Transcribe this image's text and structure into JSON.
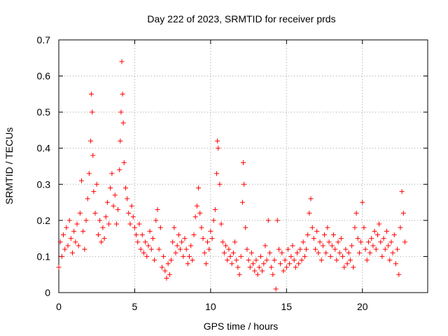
{
  "chart_data": {
    "type": "scatter",
    "title": "Day 222 of 2023, SRMTID for receiver prds",
    "xlabel": "GPS time / hours",
    "ylabel": "SRMTID / TECUs",
    "xlim": [
      0,
      24.3
    ],
    "ylim": [
      0,
      0.7
    ],
    "xticks": [
      0,
      5,
      10,
      15,
      20
    ],
    "xtick_labels": [
      "0",
      "5",
      "10",
      "15",
      "20"
    ],
    "yticks": [
      0,
      0.1,
      0.2,
      0.3,
      0.4,
      0.5,
      0.6,
      0.7
    ],
    "ytick_labels": [
      "0",
      "0.1",
      "0.2",
      "0.3",
      "0.4",
      "0.5",
      "0.6",
      "0.7"
    ],
    "grid": true,
    "marker": "+",
    "color": "#ff0000",
    "series": [
      {
        "name": "SRMTID",
        "points": [
          [
            0.0,
            0.07
          ],
          [
            0.1,
            0.14
          ],
          [
            0.2,
            0.1
          ],
          [
            0.3,
            0.16
          ],
          [
            0.4,
            0.12
          ],
          [
            0.5,
            0.18
          ],
          [
            0.6,
            0.13
          ],
          [
            0.7,
            0.2
          ],
          [
            0.8,
            0.15
          ],
          [
            0.9,
            0.11
          ],
          [
            1.0,
            0.17
          ],
          [
            1.1,
            0.14
          ],
          [
            1.2,
            0.19
          ],
          [
            1.3,
            0.13
          ],
          [
            1.4,
            0.22
          ],
          [
            1.5,
            0.31
          ],
          [
            1.6,
            0.17
          ],
          [
            1.7,
            0.12
          ],
          [
            1.8,
            0.2
          ],
          [
            1.9,
            0.26
          ],
          [
            2.0,
            0.33
          ],
          [
            2.1,
            0.42
          ],
          [
            2.15,
            0.55
          ],
          [
            2.2,
            0.5
          ],
          [
            2.25,
            0.38
          ],
          [
            2.3,
            0.28
          ],
          [
            2.4,
            0.22
          ],
          [
            2.5,
            0.3
          ],
          [
            2.6,
            0.16
          ],
          [
            2.7,
            0.2
          ],
          [
            2.8,
            0.14
          ],
          [
            2.9,
            0.18
          ],
          [
            3.0,
            0.15
          ],
          [
            3.1,
            0.21
          ],
          [
            3.2,
            0.25
          ],
          [
            3.3,
            0.19
          ],
          [
            3.4,
            0.29
          ],
          [
            3.5,
            0.33
          ],
          [
            3.6,
            0.24
          ],
          [
            3.7,
            0.27
          ],
          [
            3.8,
            0.19
          ],
          [
            3.9,
            0.23
          ],
          [
            4.0,
            0.34
          ],
          [
            4.05,
            0.42
          ],
          [
            4.1,
            0.5
          ],
          [
            4.15,
            0.64
          ],
          [
            4.2,
            0.55
          ],
          [
            4.25,
            0.47
          ],
          [
            4.3,
            0.36
          ],
          [
            4.4,
            0.29
          ],
          [
            4.5,
            0.26
          ],
          [
            4.6,
            0.22
          ],
          [
            4.7,
            0.19
          ],
          [
            4.8,
            0.24
          ],
          [
            4.9,
            0.21
          ],
          [
            5.0,
            0.18
          ],
          [
            5.1,
            0.16
          ],
          [
            5.2,
            0.14
          ],
          [
            5.3,
            0.19
          ],
          [
            5.4,
            0.12
          ],
          [
            5.5,
            0.16
          ],
          [
            5.6,
            0.11
          ],
          [
            5.7,
            0.14
          ],
          [
            5.8,
            0.1
          ],
          [
            5.9,
            0.13
          ],
          [
            6.0,
            0.17
          ],
          [
            6.1,
            0.12
          ],
          [
            6.2,
            0.15
          ],
          [
            6.3,
            0.09
          ],
          [
            6.4,
            0.2
          ],
          [
            6.5,
            0.23
          ],
          [
            6.6,
            0.12
          ],
          [
            6.7,
            0.18
          ],
          [
            6.8,
            0.07
          ],
          [
            6.9,
            0.1
          ],
          [
            7.0,
            0.06
          ],
          [
            7.1,
            0.04
          ],
          [
            7.2,
            0.08
          ],
          [
            7.3,
            0.05
          ],
          [
            7.4,
            0.09
          ],
          [
            7.5,
            0.14
          ],
          [
            7.6,
            0.18
          ],
          [
            7.7,
            0.11
          ],
          [
            7.8,
            0.13
          ],
          [
            7.9,
            0.16
          ],
          [
            8.0,
            0.12
          ],
          [
            8.1,
            0.14
          ],
          [
            8.2,
            0.1
          ],
          [
            8.3,
            0.15
          ],
          [
            8.4,
            0.12
          ],
          [
            8.5,
            0.08
          ],
          [
            8.6,
            0.1
          ],
          [
            8.7,
            0.13
          ],
          [
            8.8,
            0.09
          ],
          [
            8.9,
            0.16
          ],
          [
            9.0,
            0.21
          ],
          [
            9.1,
            0.24
          ],
          [
            9.2,
            0.29
          ],
          [
            9.3,
            0.22
          ],
          [
            9.4,
            0.18
          ],
          [
            9.5,
            0.15
          ],
          [
            9.6,
            0.11
          ],
          [
            9.7,
            0.08
          ],
          [
            9.8,
            0.14
          ],
          [
            9.9,
            0.12
          ],
          [
            10.0,
            0.17
          ],
          [
            10.1,
            0.15
          ],
          [
            10.2,
            0.2
          ],
          [
            10.3,
            0.23
          ],
          [
            10.4,
            0.33
          ],
          [
            10.45,
            0.42
          ],
          [
            10.5,
            0.4
          ],
          [
            10.6,
            0.3
          ],
          [
            10.7,
            0.19
          ],
          [
            10.8,
            0.14
          ],
          [
            10.9,
            0.11
          ],
          [
            11.0,
            0.13
          ],
          [
            11.1,
            0.09
          ],
          [
            11.2,
            0.12
          ],
          [
            11.3,
            0.1
          ],
          [
            11.4,
            0.08
          ],
          [
            11.5,
            0.11
          ],
          [
            11.6,
            0.14
          ],
          [
            11.7,
            0.09
          ],
          [
            11.8,
            0.07
          ],
          [
            11.9,
            0.05
          ],
          [
            12.0,
            0.1
          ],
          [
            12.1,
            0.25
          ],
          [
            12.15,
            0.36
          ],
          [
            12.2,
            0.3
          ],
          [
            12.3,
            0.18
          ],
          [
            12.4,
            0.12
          ],
          [
            12.5,
            0.09
          ],
          [
            12.6,
            0.07
          ],
          [
            12.7,
            0.11
          ],
          [
            12.8,
            0.08
          ],
          [
            12.9,
            0.06
          ],
          [
            13.0,
            0.09
          ],
          [
            13.1,
            0.05
          ],
          [
            13.2,
            0.07
          ],
          [
            13.3,
            0.1
          ],
          [
            13.4,
            0.06
          ],
          [
            13.5,
            0.08
          ],
          [
            13.6,
            0.13
          ],
          [
            13.7,
            0.09
          ],
          [
            13.8,
            0.2
          ],
          [
            13.9,
            0.11
          ],
          [
            14.0,
            0.07
          ],
          [
            14.1,
            0.05
          ],
          [
            14.2,
            0.09
          ],
          [
            14.3,
            0.01
          ],
          [
            14.4,
            0.2
          ],
          [
            14.5,
            0.12
          ],
          [
            14.6,
            0.08
          ],
          [
            14.7,
            0.11
          ],
          [
            14.8,
            0.06
          ],
          [
            14.9,
            0.09
          ],
          [
            15.0,
            0.07
          ],
          [
            15.1,
            0.12
          ],
          [
            15.2,
            0.08
          ],
          [
            15.3,
            0.1
          ],
          [
            15.4,
            0.13
          ],
          [
            15.5,
            0.09
          ],
          [
            15.6,
            0.07
          ],
          [
            15.7,
            0.11
          ],
          [
            15.8,
            0.08
          ],
          [
            15.9,
            0.12
          ],
          [
            16.0,
            0.09
          ],
          [
            16.1,
            0.14
          ],
          [
            16.2,
            0.1
          ],
          [
            16.3,
            0.12
          ],
          [
            16.4,
            0.16
          ],
          [
            16.5,
            0.22
          ],
          [
            16.6,
            0.26
          ],
          [
            16.7,
            0.18
          ],
          [
            16.8,
            0.15
          ],
          [
            16.9,
            0.12
          ],
          [
            17.0,
            0.17
          ],
          [
            17.1,
            0.11
          ],
          [
            17.2,
            0.14
          ],
          [
            17.3,
            0.09
          ],
          [
            17.4,
            0.13
          ],
          [
            17.5,
            0.16
          ],
          [
            17.6,
            0.11
          ],
          [
            17.7,
            0.18
          ],
          [
            17.8,
            0.14
          ],
          [
            17.9,
            0.1
          ],
          [
            18.0,
            0.13
          ],
          [
            18.1,
            0.16
          ],
          [
            18.2,
            0.12
          ],
          [
            18.3,
            0.09
          ],
          [
            18.4,
            0.14
          ],
          [
            18.5,
            0.11
          ],
          [
            18.6,
            0.15
          ],
          [
            18.7,
            0.1
          ],
          [
            18.8,
            0.07
          ],
          [
            18.9,
            0.12
          ],
          [
            19.0,
            0.08
          ],
          [
            19.1,
            0.11
          ],
          [
            19.2,
            0.09
          ],
          [
            19.3,
            0.13
          ],
          [
            19.4,
            0.07
          ],
          [
            19.5,
            0.18
          ],
          [
            19.6,
            0.22
          ],
          [
            19.7,
            0.15
          ],
          [
            19.8,
            0.11
          ],
          [
            19.9,
            0.14
          ],
          [
            20.0,
            0.25
          ],
          [
            20.1,
            0.18
          ],
          [
            20.2,
            0.12
          ],
          [
            20.3,
            0.09
          ],
          [
            20.4,
            0.14
          ],
          [
            20.5,
            0.11
          ],
          [
            20.6,
            0.15
          ],
          [
            20.7,
            0.13
          ],
          [
            20.8,
            0.17
          ],
          [
            20.9,
            0.12
          ],
          [
            21.0,
            0.16
          ],
          [
            21.1,
            0.19
          ],
          [
            21.2,
            0.14
          ],
          [
            21.3,
            0.1
          ],
          [
            21.4,
            0.15
          ],
          [
            21.5,
            0.12
          ],
          [
            21.6,
            0.17
          ],
          [
            21.7,
            0.13
          ],
          [
            21.8,
            0.09
          ],
          [
            21.9,
            0.14
          ],
          [
            22.0,
            0.11
          ],
          [
            22.1,
            0.16
          ],
          [
            22.2,
            0.08
          ],
          [
            22.3,
            0.12
          ],
          [
            22.4,
            0.05
          ],
          [
            22.5,
            0.18
          ],
          [
            22.6,
            0.28
          ],
          [
            22.7,
            0.22
          ],
          [
            22.8,
            0.14
          ]
        ]
      }
    ]
  }
}
